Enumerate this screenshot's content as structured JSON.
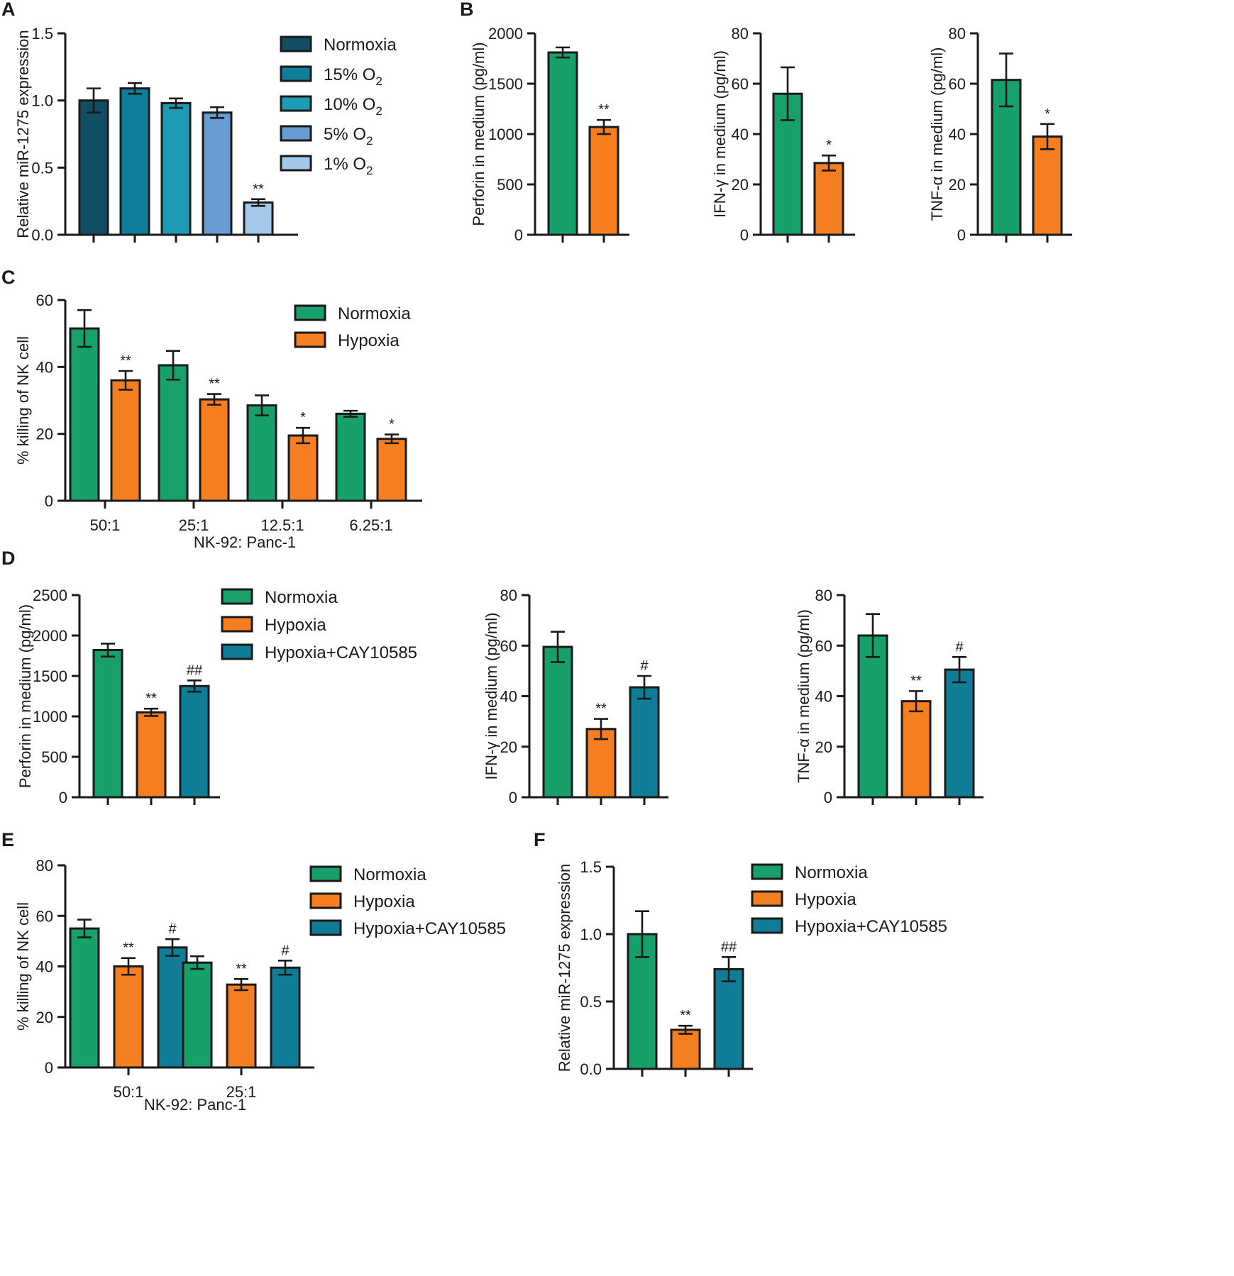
{
  "colors": {
    "normoxia": "#17a06a",
    "hypoxia": "#f47e20",
    "cay": "#107d96",
    "normoxia_a": "#124e63",
    "o2_15": "#0f7e9c",
    "o2_10": "#1d9bb4",
    "o2_5": "#699bd3",
    "o2_1": "#a4c8ea"
  },
  "chart_data": [
    {
      "panel": "A",
      "type": "bar",
      "ylabel": "Relative miR-1275 expression",
      "ylim": [
        0,
        1.5
      ],
      "yticks": [
        "0.0",
        "0.5",
        "1.0",
        "1.5"
      ],
      "legend": [
        "Normoxia",
        "15% O2",
        "10% O2",
        "5% O2",
        "1% O2"
      ],
      "values": [
        1.0,
        1.09,
        0.98,
        0.91,
        0.24
      ],
      "errors": [
        0.09,
        0.04,
        0.035,
        0.04,
        0.025
      ],
      "significance": [
        "",
        "",
        "",
        "",
        "**"
      ]
    },
    {
      "panel": "B",
      "type": "bar",
      "ylabel": "Perforin in medium (pg/ml)",
      "ylim": [
        0,
        2000
      ],
      "yticks": [
        "0",
        "500",
        "1000",
        "1500",
        "2000"
      ],
      "values": [
        1810,
        1070
      ],
      "errors": [
        50,
        70
      ],
      "significance": [
        "",
        "**"
      ]
    },
    {
      "panel": "B",
      "type": "bar",
      "ylabel": "IFN-γ in medium (pg/ml)",
      "ylim": [
        0,
        80
      ],
      "yticks": [
        "0",
        "20",
        "40",
        "60",
        "80"
      ],
      "values": [
        56,
        28.5
      ],
      "errors": [
        10.5,
        3
      ],
      "significance": [
        "",
        "*"
      ]
    },
    {
      "panel": "B",
      "type": "bar",
      "ylabel": "TNF-α in medium (pg/ml)",
      "ylim": [
        0,
        80
      ],
      "yticks": [
        "0",
        "20",
        "40",
        "60",
        "80"
      ],
      "values": [
        61.5,
        39
      ],
      "errors": [
        10.5,
        5
      ],
      "significance": [
        "",
        "*"
      ]
    },
    {
      "panel": "C",
      "type": "bar",
      "ylabel": "% killing of NK cell",
      "xlabel": "NK-92: Panc-1",
      "ylim": [
        0,
        60
      ],
      "yticks": [
        "0",
        "20",
        "40",
        "60"
      ],
      "categories": [
        "50:1",
        "25:1",
        "12.5:1",
        "6.25:1"
      ],
      "legend": [
        "Normoxia",
        "Hypoxia"
      ],
      "series": [
        {
          "name": "Normoxia",
          "values": [
            51.5,
            40.5,
            28.5,
            26
          ],
          "errors": [
            5.5,
            4.3,
            3,
            0.9
          ],
          "significance": [
            "",
            "",
            "",
            ""
          ]
        },
        {
          "name": "Hypoxia",
          "values": [
            36,
            30.3,
            19.5,
            18.5
          ],
          "errors": [
            2.8,
            1.6,
            2.3,
            1.3
          ],
          "significance": [
            "**",
            "**",
            "*",
            "*"
          ]
        }
      ]
    },
    {
      "panel": "D",
      "type": "bar",
      "ylabel": "Perforin in medium (pg/ml)",
      "ylim": [
        0,
        2500
      ],
      "yticks": [
        "0",
        "500",
        "1000",
        "1500",
        "2000",
        "2500"
      ],
      "legend": [
        "Normoxia",
        "Hypoxia",
        "Hypoxia+CAY10585"
      ],
      "values": [
        1820,
        1050,
        1375
      ],
      "errors": [
        80,
        45,
        70
      ],
      "significance": [
        "",
        "**",
        "##"
      ]
    },
    {
      "panel": "D",
      "type": "bar",
      "ylabel": "IFN-γ in medium (pg/ml)",
      "ylim": [
        0,
        80
      ],
      "yticks": [
        "0",
        "20",
        "40",
        "60",
        "80"
      ],
      "values": [
        59.5,
        27,
        43.5
      ],
      "errors": [
        6,
        4,
        4.5
      ],
      "significance": [
        "",
        "**",
        "#"
      ]
    },
    {
      "panel": "D",
      "type": "bar",
      "ylabel": "TNF-α in medium (pg/ml)",
      "ylim": [
        0,
        80
      ],
      "yticks": [
        "0",
        "20",
        "40",
        "60",
        "80"
      ],
      "values": [
        64,
        38,
        50.5
      ],
      "errors": [
        8.5,
        4,
        5
      ],
      "significance": [
        "",
        "**",
        "#"
      ]
    },
    {
      "panel": "E",
      "type": "bar",
      "ylabel": "% killing of NK cell",
      "xlabel": "NK-92: Panc-1",
      "ylim": [
        0,
        80
      ],
      "yticks": [
        "0",
        "20",
        "40",
        "60",
        "80"
      ],
      "categories": [
        "50:1",
        "25:1"
      ],
      "legend": [
        "Normoxia",
        "Hypoxia",
        "Hypoxia+CAY10585"
      ],
      "series": [
        {
          "name": "Normoxia",
          "values": [
            55,
            41.5
          ],
          "errors": [
            3.5,
            2.5
          ],
          "significance": [
            "",
            ""
          ]
        },
        {
          "name": "Hypoxia",
          "values": [
            40,
            32.8
          ],
          "errors": [
            3.3,
            2.2
          ],
          "significance": [
            "**",
            "**"
          ]
        },
        {
          "name": "Hypoxia+CAY10585",
          "values": [
            47.5,
            39.5
          ],
          "errors": [
            3.3,
            2.8
          ],
          "significance": [
            "#",
            "#"
          ]
        }
      ]
    },
    {
      "panel": "F",
      "type": "bar",
      "ylabel": "Relative miR-1275 expression",
      "ylim": [
        0,
        1.5
      ],
      "yticks": [
        "0.0",
        "0.5",
        "1.0",
        "1.5"
      ],
      "legend": [
        "Normoxia",
        "Hypoxia",
        "Hypoxia+CAY10585"
      ],
      "values": [
        1.0,
        0.29,
        0.74
      ],
      "errors": [
        0.17,
        0.03,
        0.09
      ],
      "significance": [
        "",
        "**",
        "##"
      ]
    }
  ]
}
